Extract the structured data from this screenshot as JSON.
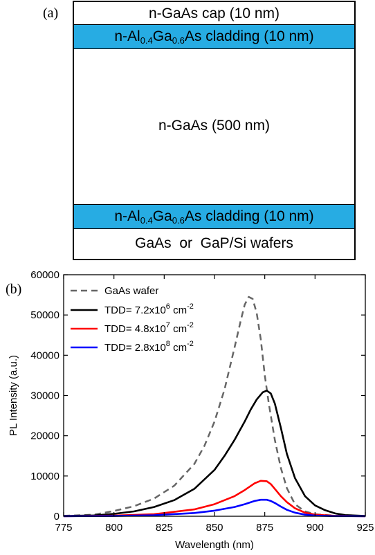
{
  "figure": {
    "panel_a_label": "(a)",
    "panel_b_label": "(b)",
    "layers": [
      {
        "name": "n-GaAs cap (10 nm)",
        "color": "#FFFFFF"
      },
      {
        "pre": "n-Al",
        "sub1": "0.4",
        "mid": "Ga",
        "sub2": "0.6",
        "post": "As cladding (10 nm)",
        "color": "#27ACE3"
      },
      {
        "name": "n-GaAs (500 nm)",
        "color": "#FFFFFF"
      },
      {
        "pre": "n-Al",
        "sub1": "0.4",
        "mid": "Ga",
        "sub2": "0.6",
        "post": "As cladding (10 nm)",
        "color": "#27ACE3"
      },
      {
        "name": "GaAs  or  GaP/Si wafers",
        "color": "#FFFFFF"
      }
    ]
  },
  "chart_data": {
    "type": "line",
    "xlabel": "Wavelength (nm)",
    "ylabel": "PL Intensity (a.u.)",
    "xlim": [
      775,
      925
    ],
    "ylim": [
      0,
      60000
    ],
    "xticks": [
      775,
      800,
      825,
      850,
      875,
      900,
      925
    ],
    "yticks": [
      0,
      10000,
      20000,
      30000,
      40000,
      50000,
      60000
    ],
    "grid": false,
    "legend_position": "top-left",
    "series": [
      {
        "name": "GaAs wafer",
        "color": "#666666",
        "dash": true,
        "x": [
          775,
          790,
          800,
          810,
          820,
          830,
          840,
          845,
          850,
          855,
          860,
          863,
          865,
          867,
          869,
          871,
          873,
          875,
          877,
          880,
          883,
          886,
          890,
          895,
          900,
          910,
          925
        ],
        "y": [
          100,
          400,
          1300,
          2500,
          4400,
          7600,
          13000,
          17500,
          23500,
          31500,
          42000,
          48500,
          52500,
          54500,
          54000,
          50500,
          44000,
          35000,
          28000,
          19000,
          12000,
          7000,
          3000,
          1200,
          500,
          150,
          50
        ]
      },
      {
        "name": "TDD= 7.2x10^6 cm^-2",
        "label_base": "TDD= 7.2x10",
        "label_exp": "6",
        "label_unit": " cm",
        "label_unit_exp": "-2",
        "color": "#000000",
        "dash": false,
        "x": [
          775,
          790,
          800,
          810,
          820,
          830,
          840,
          850,
          855,
          860,
          865,
          868,
          871,
          874,
          876,
          878,
          880,
          883,
          886,
          890,
          895,
          900,
          905,
          910,
          915,
          925
        ],
        "y": [
          50,
          200,
          600,
          1200,
          2300,
          4000,
          6800,
          11500,
          15000,
          19000,
          23500,
          26500,
          29000,
          30800,
          31200,
          30500,
          28000,
          22000,
          15500,
          9500,
          5000,
          2700,
          1500,
          700,
          300,
          80
        ]
      },
      {
        "name": "TDD= 4.8x10^7 cm^-2",
        "label_base": "TDD= 4.8x10",
        "label_exp": "7",
        "label_unit": " cm",
        "label_unit_exp": "-2",
        "color": "#FF0000",
        "dash": false,
        "x": [
          775,
          800,
          820,
          840,
          850,
          860,
          865,
          870,
          873,
          876,
          878,
          880,
          883,
          886,
          890,
          895,
          900,
          910,
          925
        ],
        "y": [
          20,
          150,
          500,
          1700,
          3000,
          5000,
          6500,
          8200,
          8800,
          8700,
          8000,
          6800,
          5000,
          3500,
          2000,
          900,
          400,
          100,
          20
        ]
      },
      {
        "name": "TDD= 2.8x10^8 cm^-2",
        "label_base": "TDD= 2.8x10",
        "label_exp": "8",
        "label_unit": " cm",
        "label_unit_exp": "-2",
        "color": "#0000FF",
        "dash": false,
        "x": [
          775,
          800,
          820,
          840,
          850,
          860,
          865,
          870,
          873,
          876,
          878,
          880,
          883,
          886,
          890,
          895,
          900,
          910,
          925
        ],
        "y": [
          10,
          70,
          250,
          800,
          1400,
          2300,
          3000,
          3800,
          4100,
          4100,
          3800,
          3300,
          2400,
          1600,
          900,
          400,
          150,
          40,
          10
        ]
      }
    ]
  }
}
